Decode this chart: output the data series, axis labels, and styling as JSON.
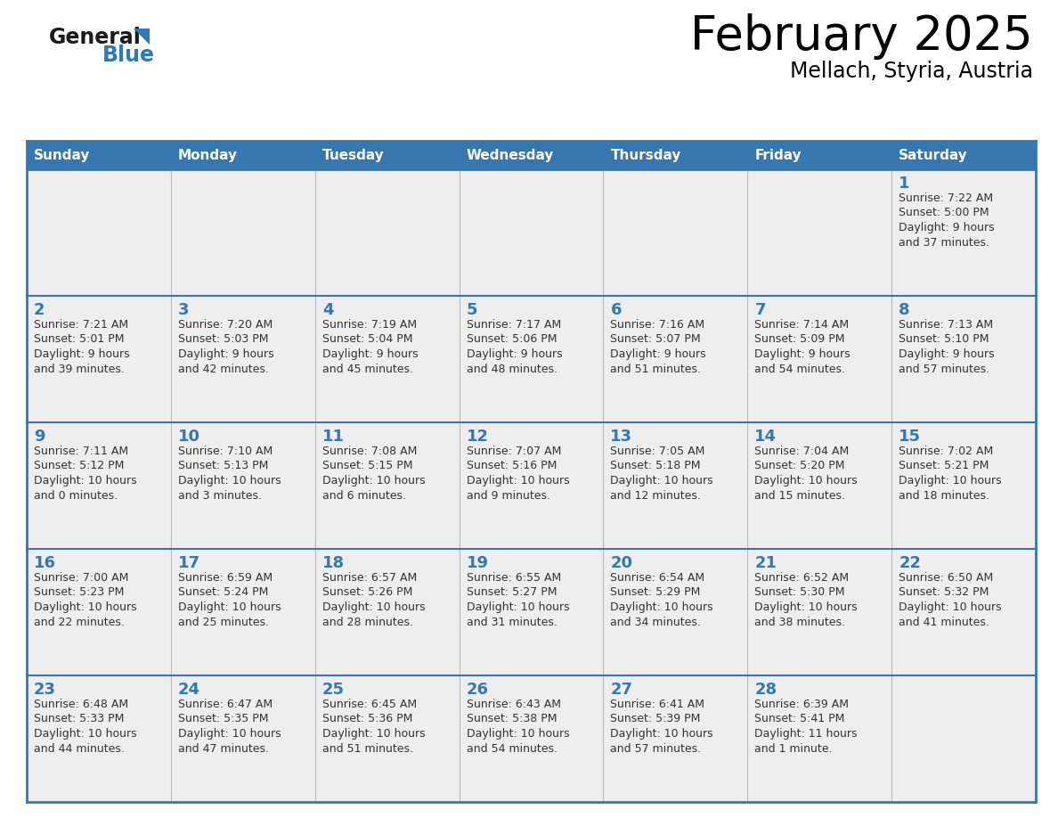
{
  "title": "February 2025",
  "subtitle": "Mellach, Styria, Austria",
  "days_of_week": [
    "Sunday",
    "Monday",
    "Tuesday",
    "Wednesday",
    "Thursday",
    "Friday",
    "Saturday"
  ],
  "header_bg_color": "#3777b0",
  "header_text_color": "#ffffff",
  "cell_bg_color": "#eeeeee",
  "day_number_color": "#3777b0",
  "text_color": "#333333",
  "border_color": "#3777b0",
  "logo_general_color": "#1a1a1a",
  "logo_blue_color": "#2e7ab8",
  "calendar_data": [
    [
      {
        "day": null,
        "sunrise": null,
        "sunset": null,
        "daylight_line1": null,
        "daylight_line2": null
      },
      {
        "day": null,
        "sunrise": null,
        "sunset": null,
        "daylight_line1": null,
        "daylight_line2": null
      },
      {
        "day": null,
        "sunrise": null,
        "sunset": null,
        "daylight_line1": null,
        "daylight_line2": null
      },
      {
        "day": null,
        "sunrise": null,
        "sunset": null,
        "daylight_line1": null,
        "daylight_line2": null
      },
      {
        "day": null,
        "sunrise": null,
        "sunset": null,
        "daylight_line1": null,
        "daylight_line2": null
      },
      {
        "day": null,
        "sunrise": null,
        "sunset": null,
        "daylight_line1": null,
        "daylight_line2": null
      },
      {
        "day": 1,
        "sunrise": "7:22 AM",
        "sunset": "5:00 PM",
        "daylight_line1": "Daylight: 9 hours",
        "daylight_line2": "and 37 minutes."
      }
    ],
    [
      {
        "day": 2,
        "sunrise": "7:21 AM",
        "sunset": "5:01 PM",
        "daylight_line1": "Daylight: 9 hours",
        "daylight_line2": "and 39 minutes."
      },
      {
        "day": 3,
        "sunrise": "7:20 AM",
        "sunset": "5:03 PM",
        "daylight_line1": "Daylight: 9 hours",
        "daylight_line2": "and 42 minutes."
      },
      {
        "day": 4,
        "sunrise": "7:19 AM",
        "sunset": "5:04 PM",
        "daylight_line1": "Daylight: 9 hours",
        "daylight_line2": "and 45 minutes."
      },
      {
        "day": 5,
        "sunrise": "7:17 AM",
        "sunset": "5:06 PM",
        "daylight_line1": "Daylight: 9 hours",
        "daylight_line2": "and 48 minutes."
      },
      {
        "day": 6,
        "sunrise": "7:16 AM",
        "sunset": "5:07 PM",
        "daylight_line1": "Daylight: 9 hours",
        "daylight_line2": "and 51 minutes."
      },
      {
        "day": 7,
        "sunrise": "7:14 AM",
        "sunset": "5:09 PM",
        "daylight_line1": "Daylight: 9 hours",
        "daylight_line2": "and 54 minutes."
      },
      {
        "day": 8,
        "sunrise": "7:13 AM",
        "sunset": "5:10 PM",
        "daylight_line1": "Daylight: 9 hours",
        "daylight_line2": "and 57 minutes."
      }
    ],
    [
      {
        "day": 9,
        "sunrise": "7:11 AM",
        "sunset": "5:12 PM",
        "daylight_line1": "Daylight: 10 hours",
        "daylight_line2": "and 0 minutes."
      },
      {
        "day": 10,
        "sunrise": "7:10 AM",
        "sunset": "5:13 PM",
        "daylight_line1": "Daylight: 10 hours",
        "daylight_line2": "and 3 minutes."
      },
      {
        "day": 11,
        "sunrise": "7:08 AM",
        "sunset": "5:15 PM",
        "daylight_line1": "Daylight: 10 hours",
        "daylight_line2": "and 6 minutes."
      },
      {
        "day": 12,
        "sunrise": "7:07 AM",
        "sunset": "5:16 PM",
        "daylight_line1": "Daylight: 10 hours",
        "daylight_line2": "and 9 minutes."
      },
      {
        "day": 13,
        "sunrise": "7:05 AM",
        "sunset": "5:18 PM",
        "daylight_line1": "Daylight: 10 hours",
        "daylight_line2": "and 12 minutes."
      },
      {
        "day": 14,
        "sunrise": "7:04 AM",
        "sunset": "5:20 PM",
        "daylight_line1": "Daylight: 10 hours",
        "daylight_line2": "and 15 minutes."
      },
      {
        "day": 15,
        "sunrise": "7:02 AM",
        "sunset": "5:21 PM",
        "daylight_line1": "Daylight: 10 hours",
        "daylight_line2": "and 18 minutes."
      }
    ],
    [
      {
        "day": 16,
        "sunrise": "7:00 AM",
        "sunset": "5:23 PM",
        "daylight_line1": "Daylight: 10 hours",
        "daylight_line2": "and 22 minutes."
      },
      {
        "day": 17,
        "sunrise": "6:59 AM",
        "sunset": "5:24 PM",
        "daylight_line1": "Daylight: 10 hours",
        "daylight_line2": "and 25 minutes."
      },
      {
        "day": 18,
        "sunrise": "6:57 AM",
        "sunset": "5:26 PM",
        "daylight_line1": "Daylight: 10 hours",
        "daylight_line2": "and 28 minutes."
      },
      {
        "day": 19,
        "sunrise": "6:55 AM",
        "sunset": "5:27 PM",
        "daylight_line1": "Daylight: 10 hours",
        "daylight_line2": "and 31 minutes."
      },
      {
        "day": 20,
        "sunrise": "6:54 AM",
        "sunset": "5:29 PM",
        "daylight_line1": "Daylight: 10 hours",
        "daylight_line2": "and 34 minutes."
      },
      {
        "day": 21,
        "sunrise": "6:52 AM",
        "sunset": "5:30 PM",
        "daylight_line1": "Daylight: 10 hours",
        "daylight_line2": "and 38 minutes."
      },
      {
        "day": 22,
        "sunrise": "6:50 AM",
        "sunset": "5:32 PM",
        "daylight_line1": "Daylight: 10 hours",
        "daylight_line2": "and 41 minutes."
      }
    ],
    [
      {
        "day": 23,
        "sunrise": "6:48 AM",
        "sunset": "5:33 PM",
        "daylight_line1": "Daylight: 10 hours",
        "daylight_line2": "and 44 minutes."
      },
      {
        "day": 24,
        "sunrise": "6:47 AM",
        "sunset": "5:35 PM",
        "daylight_line1": "Daylight: 10 hours",
        "daylight_line2": "and 47 minutes."
      },
      {
        "day": 25,
        "sunrise": "6:45 AM",
        "sunset": "5:36 PM",
        "daylight_line1": "Daylight: 10 hours",
        "daylight_line2": "and 51 minutes."
      },
      {
        "day": 26,
        "sunrise": "6:43 AM",
        "sunset": "5:38 PM",
        "daylight_line1": "Daylight: 10 hours",
        "daylight_line2": "and 54 minutes."
      },
      {
        "day": 27,
        "sunrise": "6:41 AM",
        "sunset": "5:39 PM",
        "daylight_line1": "Daylight: 10 hours",
        "daylight_line2": "and 57 minutes."
      },
      {
        "day": 28,
        "sunrise": "6:39 AM",
        "sunset": "5:41 PM",
        "daylight_line1": "Daylight: 11 hours",
        "daylight_line2": "and 1 minute."
      },
      {
        "day": null,
        "sunrise": null,
        "sunset": null,
        "daylight_line1": null,
        "daylight_line2": null
      }
    ]
  ]
}
